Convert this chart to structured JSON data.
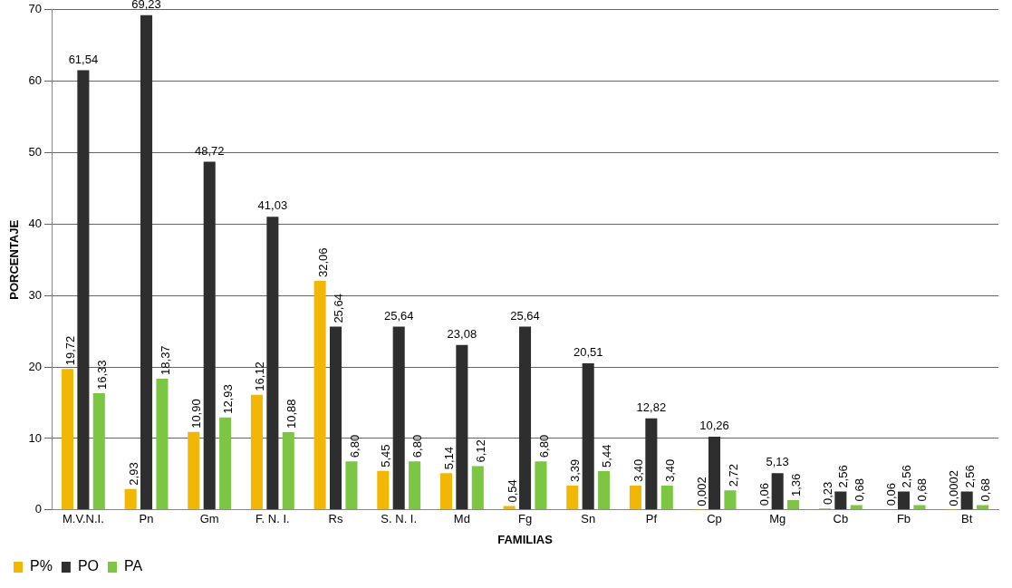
{
  "chart_data": {
    "type": "bar",
    "xlabel": "FAMILIAS",
    "ylabel": "PORCENTAJE",
    "categories": [
      "M.V.N.I.",
      "Pn",
      "Gm",
      "F. N. I.",
      "Rs",
      "S. N. I.",
      "Md",
      "Fg",
      "Sn",
      "Pf",
      "Cp",
      "Mg",
      "Cb",
      "Fb",
      "Bt"
    ],
    "series": [
      {
        "name": "P%",
        "color": "#f2b705",
        "values": [
          19.72,
          2.93,
          10.9,
          16.12,
          32.06,
          5.45,
          5.14,
          0.54,
          3.39,
          3.4,
          0.002,
          0.06,
          0.23,
          0.06,
          0.0002
        ],
        "value_labels": [
          "19,72",
          "2,93",
          "10,90",
          "16,12",
          "32,06",
          "5,45",
          "5,14",
          "0,54",
          "3,39",
          "3,40",
          "0,002",
          "0,06",
          "0,23",
          "0,06",
          "0,0002"
        ]
      },
      {
        "name": "PO",
        "color": "#2e2e2e",
        "values": [
          61.54,
          69.23,
          48.72,
          41.03,
          25.64,
          25.64,
          23.08,
          25.64,
          20.51,
          12.82,
          10.26,
          5.13,
          2.56,
          2.56,
          2.56
        ],
        "value_labels": [
          "61,54",
          "69,23",
          "48,72",
          "41,03",
          "25,64",
          "25,64",
          "23,08",
          "25,64",
          "20,51",
          "12,82",
          "10,26",
          "5,13",
          "2,56",
          "2,56",
          "2,56"
        ]
      },
      {
        "name": "PA",
        "color": "#7cc644",
        "values": [
          16.33,
          18.37,
          12.93,
          10.88,
          6.8,
          6.8,
          6.12,
          6.8,
          5.44,
          3.4,
          2.72,
          1.36,
          0.68,
          0.68,
          0.68
        ],
        "value_labels": [
          "16,33",
          "18,37",
          "12,93",
          "10,88",
          "6,80",
          "6,80",
          "6,12",
          "6,80",
          "5,44",
          "3,40",
          "2,72",
          "1,36",
          "0,68",
          "0,68",
          "0,68"
        ]
      }
    ],
    "ylim": [
      0,
      70
    ],
    "yticks": [
      0,
      10,
      20,
      30,
      40,
      50,
      60,
      70
    ],
    "grid": "y",
    "legend": "bottom left"
  }
}
